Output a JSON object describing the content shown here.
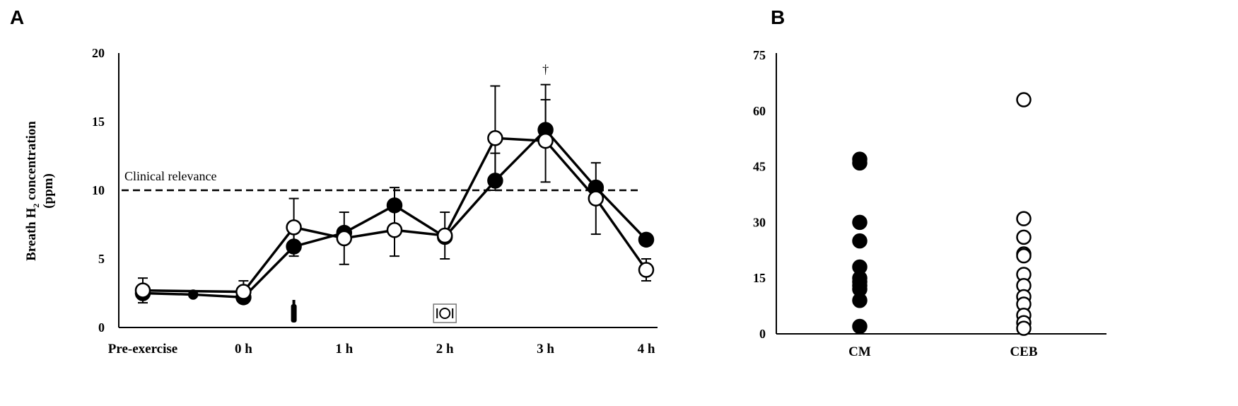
{
  "chart_data": [
    {
      "panel": "A",
      "type": "line",
      "categories": [
        "Pre-exercise",
        "",
        "0 h",
        "",
        "1 h",
        "",
        "2 h",
        "",
        "3 h",
        "",
        "4 h"
      ],
      "ylabel_main": "Breath H",
      "ylabel_sub": "2",
      "ylabel_rest": " concentration",
      "ylabel_unit": "(ppm)",
      "ylim": [
        0,
        20
      ],
      "yticks": [
        "0",
        "5",
        "10",
        "15",
        "20"
      ],
      "series": [
        {
          "marker": "filled",
          "values": [
            2.5,
            2.4,
            2.2,
            5.9,
            6.9,
            8.9,
            6.6,
            10.7,
            14.4,
            10.2,
            6.4
          ],
          "error": [
            0.0,
            0.0,
            0.0,
            1.3,
            0.0,
            1.3,
            0.0,
            2.0,
            3.3,
            0.0,
            0.0
          ]
        },
        {
          "marker": "open",
          "values": [
            2.7,
            null,
            2.6,
            7.3,
            6.5,
            7.1,
            6.7,
            13.8,
            13.6,
            9.4,
            4.2
          ],
          "error": [
            0.9,
            0.0,
            0.8,
            2.1,
            1.9,
            1.9,
            1.7,
            3.8,
            3.0,
            2.6,
            0.8
          ]
        }
      ],
      "reference_line": {
        "value": 10,
        "label": "Clinical relevance",
        "style": "dashed"
      },
      "annotations": [
        {
          "symbol": "†",
          "category_index": 8
        },
        {
          "icon": "drink-bottle-icon",
          "category_index": 3
        },
        {
          "icon": "meal-plate-icon",
          "category_index": 6
        }
      ]
    },
    {
      "panel": "B",
      "type": "scatter",
      "categories": [
        "CM",
        "CEB"
      ],
      "ylim": [
        0,
        75
      ],
      "yticks": [
        "0",
        "15",
        "30",
        "45",
        "60",
        "75"
      ],
      "series": [
        {
          "category": "CM",
          "marker": "filled",
          "values": [
            47,
            46,
            30,
            25,
            18,
            15,
            14,
            13,
            12,
            9,
            2
          ]
        },
        {
          "category": "CEB",
          "marker": "open",
          "values": [
            63,
            31,
            26,
            21.5,
            21,
            16,
            13,
            10,
            8,
            5,
            3,
            1.5
          ]
        }
      ]
    }
  ]
}
